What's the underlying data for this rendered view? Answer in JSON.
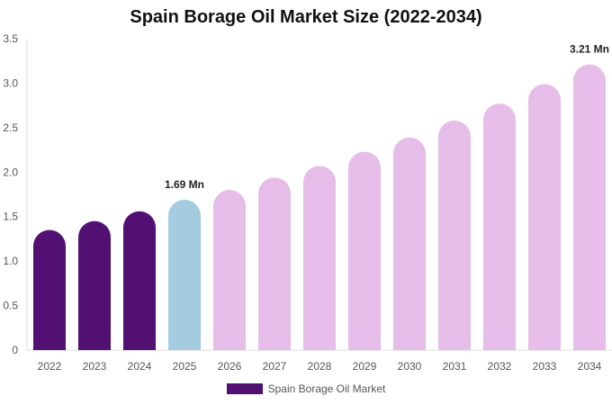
{
  "chart_data": {
    "type": "bar",
    "title": "Spain Borage Oil Market Size (2022-2034)",
    "categories": [
      "2022",
      "2023",
      "2024",
      "2025",
      "2026",
      "2027",
      "2028",
      "2029",
      "2030",
      "2031",
      "2032",
      "2033",
      "2034"
    ],
    "series": [
      {
        "name": "Spain Borage Oil Market",
        "values": [
          1.35,
          1.45,
          1.56,
          1.69,
          1.8,
          1.94,
          2.07,
          2.23,
          2.39,
          2.58,
          2.77,
          2.99,
          3.21
        ]
      }
    ],
    "ylim": [
      0,
      3.5
    ],
    "yticks": [
      "0",
      "0.5",
      "1.0",
      "1.5",
      "2.0",
      "2.5",
      "3.0",
      "3.5"
    ],
    "data_labels": [
      {
        "index": 3,
        "text": "1.69 Mn"
      },
      {
        "index": 12,
        "text": "3.21 Mn"
      }
    ],
    "colors": {
      "historical": "#521073",
      "current": "#a4cbdf",
      "forecast": "#e6bce8"
    },
    "historical_count": 3,
    "current_index": 3,
    "legend": {
      "placement": "bottom",
      "label": "Spain Borage Oil Market",
      "color": "#521073"
    },
    "grid": false
  }
}
